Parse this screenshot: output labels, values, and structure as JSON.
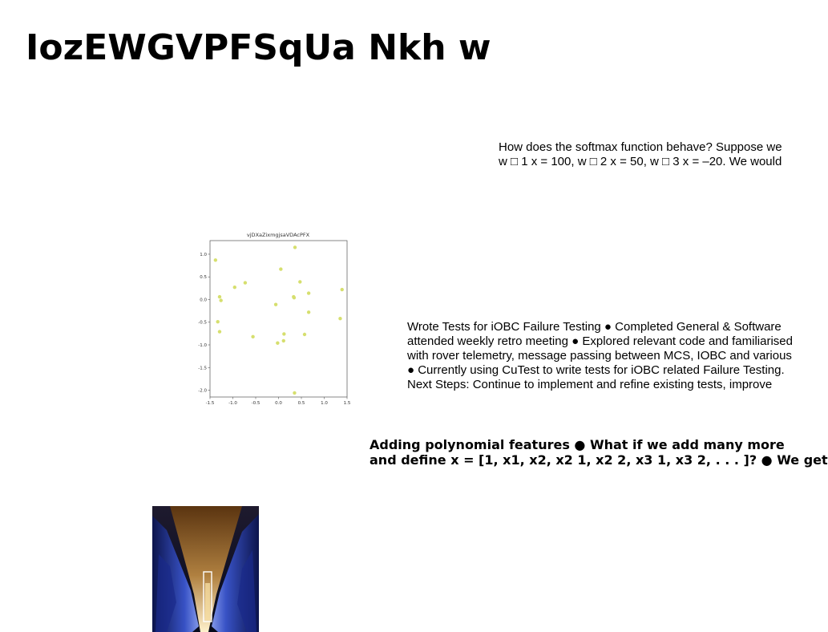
{
  "slide": {
    "title": "IozEWGVPFSqUa Nkh w"
  },
  "blocks": {
    "softmax": [
      "How does the softmax function behave? Suppose we",
      "w □ 1 x = 100, w □ 2 x = 50, w □ 3 x = –20. We would"
    ],
    "iobc": [
      "Wrote Tests for iOBC Failure Testing ● Completed General & Software",
      "attended weekly retro meeting ● Explored relevant code and familiarised",
      "with rover telemetry, message passing between MCS, IOBC and various",
      "● Currently using CuTest to write tests for iOBC related Failure Testing.",
      "Next Steps: Continue to implement and refine existing tests, improve"
    ],
    "polynomial": [
      "Adding polynomial features ● What if we add many more",
      "and define x = [1, x1, x2, x2 1, x2 2, x3 1, x3 2, . . . ]? ● We get"
    ]
  },
  "chart_data": {
    "type": "scatter",
    "title": "vjDXaZixmgjsaVDAcPFX",
    "point_color": "#d6df6e",
    "xlim": [
      -1.5,
      1.5
    ],
    "ylim": [
      -2.15,
      1.3
    ],
    "x_ticks": [
      "-1.5",
      "-1.0",
      "-0.5",
      "0.0",
      "0.5",
      "1.0",
      "1.5"
    ],
    "y_ticks": [
      "1.0",
      "0.5",
      "0.0",
      "-0.5",
      "-1.0",
      "-1.5",
      "-2.0"
    ],
    "points": [
      {
        "x": -1.38,
        "y": 0.87
      },
      {
        "x": 0.36,
        "y": 1.15
      },
      {
        "x": 0.05,
        "y": 0.67
      },
      {
        "x": -0.73,
        "y": 0.37
      },
      {
        "x": -0.96,
        "y": 0.27
      },
      {
        "x": 0.47,
        "y": 0.39
      },
      {
        "x": 1.39,
        "y": 0.22
      },
      {
        "x": 0.66,
        "y": 0.14
      },
      {
        "x": -1.29,
        "y": 0.06
      },
      {
        "x": -1.26,
        "y": -0.02
      },
      {
        "x": 0.33,
        "y": 0.06
      },
      {
        "x": 0.34,
        "y": 0.04
      },
      {
        "x": -0.06,
        "y": -0.11
      },
      {
        "x": 0.66,
        "y": -0.28
      },
      {
        "x": -1.33,
        "y": -0.49
      },
      {
        "x": 1.35,
        "y": -0.42
      },
      {
        "x": -1.29,
        "y": -0.71
      },
      {
        "x": -0.56,
        "y": -0.82
      },
      {
        "x": 0.12,
        "y": -0.76
      },
      {
        "x": 0.57,
        "y": -0.77
      },
      {
        "x": 0.11,
        "y": -0.91
      },
      {
        "x": -0.02,
        "y": -0.96
      },
      {
        "x": 0.35,
        "y": -2.06
      }
    ]
  },
  "photo": {
    "icon": "abstract-light-image"
  }
}
